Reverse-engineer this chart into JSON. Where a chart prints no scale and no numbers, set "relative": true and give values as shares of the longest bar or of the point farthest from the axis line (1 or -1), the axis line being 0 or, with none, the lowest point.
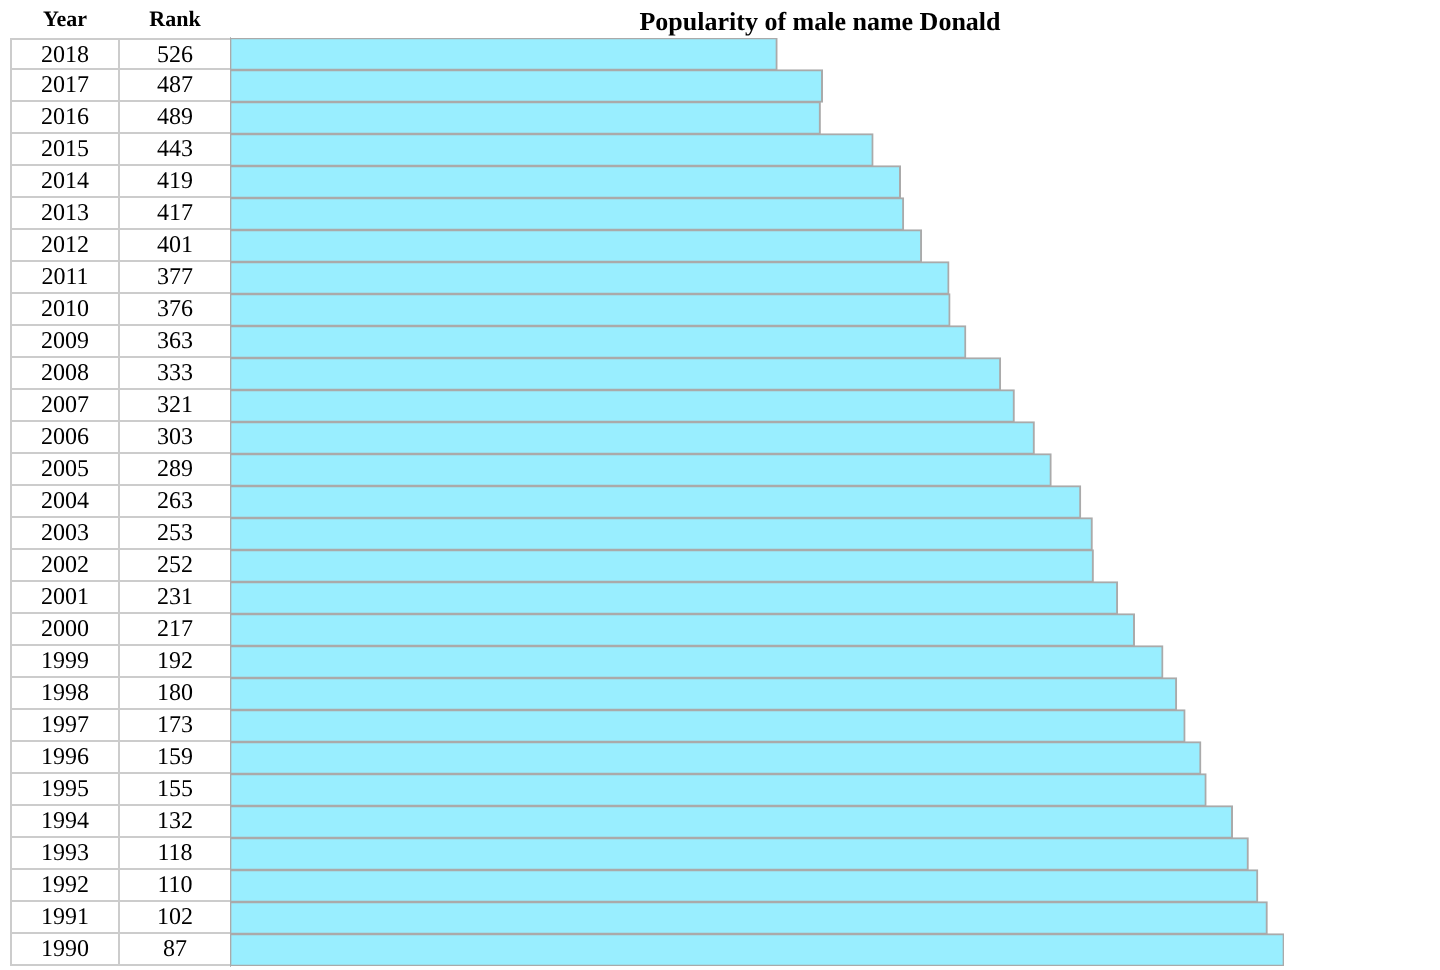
{
  "chart_data": [
    {
      "type": "heatmap",
      "ylabel": "Year",
      "categories": [
        "Rank"
      ],
      "data_labels": true,
      "y_categories": [
        "2018",
        "2017",
        "2016",
        "2015",
        "2014",
        "2013",
        "2012",
        "2011",
        "2010",
        "2009",
        "2008",
        "2007",
        "2006",
        "2005",
        "2004",
        "2003",
        "2002",
        "2001",
        "2000",
        "1999",
        "1998",
        "1997",
        "1996",
        "1995",
        "1994",
        "1993",
        "1992",
        "1991",
        "1990"
      ],
      "cells": [
        [
          526
        ],
        [
          487
        ],
        [
          489
        ],
        [
          443
        ],
        [
          419
        ],
        [
          417
        ],
        [
          401
        ],
        [
          377
        ],
        [
          376
        ],
        [
          363
        ],
        [
          333
        ],
        [
          321
        ],
        [
          303
        ],
        [
          289
        ],
        [
          263
        ],
        [
          253
        ],
        [
          252
        ],
        [
          231
        ],
        [
          217
        ],
        [
          192
        ],
        [
          180
        ],
        [
          173
        ],
        [
          159
        ],
        [
          155
        ],
        [
          132
        ],
        [
          118
        ],
        [
          110
        ],
        [
          102
        ],
        [
          87
        ]
      ]
    },
    {
      "type": "bar",
      "orientation": "horizontal",
      "relative": true,
      "tick_labels": false,
      "title": "Popularity of male name Donald",
      "color": "#99eeff",
      "categories": [
        "2018",
        "2017",
        "2016",
        "2015",
        "2014",
        "2013",
        "2012",
        "2011",
        "2010",
        "2009",
        "2008",
        "2007",
        "2006",
        "2005",
        "2004",
        "2003",
        "2002",
        "2001",
        "2000",
        "1999",
        "1998",
        "1997",
        "1996",
        "1995",
        "1994",
        "1993",
        "1992",
        "1991",
        "1990"
      ],
      "values": [
        0.519,
        0.562,
        0.56,
        0.61,
        0.636,
        0.639,
        0.656,
        0.682,
        0.683,
        0.698,
        0.731,
        0.744,
        0.763,
        0.779,
        0.807,
        0.818,
        0.819,
        0.842,
        0.858,
        0.885,
        0.898,
        0.906,
        0.921,
        0.926,
        0.951,
        0.966,
        0.975,
        0.984,
        1
      ]
    }
  ]
}
